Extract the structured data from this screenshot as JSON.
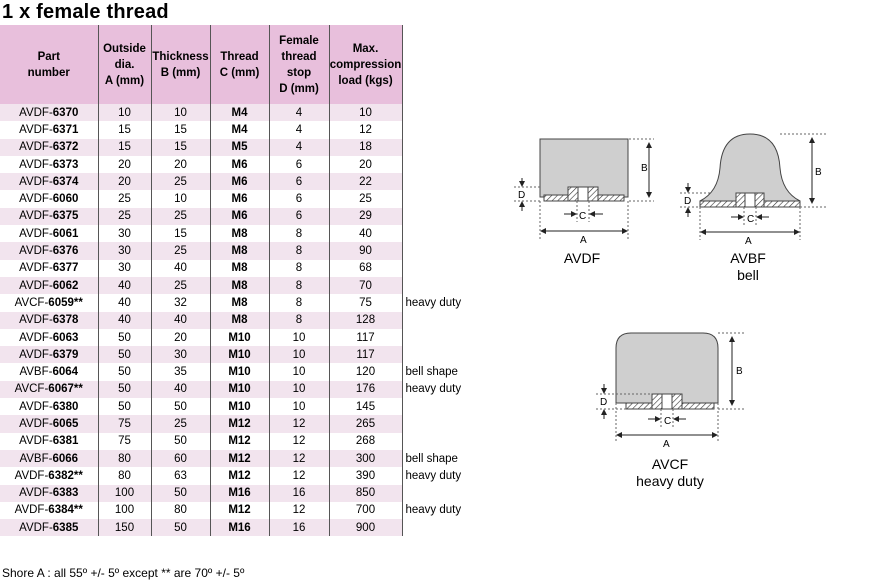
{
  "title": "1 x female thread",
  "headers": {
    "part": [
      "Part",
      "number"
    ],
    "outside": [
      "Outside",
      "dia.",
      "A (mm)"
    ],
    "thickness": [
      "Thickness",
      "B (mm)"
    ],
    "thread": [
      "Thread",
      "C (mm)"
    ],
    "stop": [
      "Female",
      "thread",
      "stop",
      "D (mm)"
    ],
    "load": [
      "Max.",
      "compression",
      "load (kgs)"
    ]
  },
  "rows": [
    {
      "prefix": "AVDF-",
      "code": "6370",
      "a": "10",
      "b": "10",
      "c": "M4",
      "d": "4",
      "load": "10",
      "note": ""
    },
    {
      "prefix": "AVDF-",
      "code": "6371",
      "a": "15",
      "b": "15",
      "c": "M4",
      "d": "4",
      "load": "12",
      "note": ""
    },
    {
      "prefix": "AVDF-",
      "code": "6372",
      "a": "15",
      "b": "15",
      "c": "M5",
      "d": "4",
      "load": "18",
      "note": ""
    },
    {
      "prefix": "AVDF-",
      "code": "6373",
      "a": "20",
      "b": "20",
      "c": "M6",
      "d": "6",
      "load": "20",
      "note": ""
    },
    {
      "prefix": "AVDF-",
      "code": "6374",
      "a": "20",
      "b": "25",
      "c": "M6",
      "d": "6",
      "load": "22",
      "note": ""
    },
    {
      "prefix": "AVDF-",
      "code": "6060",
      "a": "25",
      "b": "10",
      "c": "M6",
      "d": "6",
      "load": "25",
      "note": ""
    },
    {
      "prefix": "AVDF-",
      "code": "6375",
      "a": "25",
      "b": "25",
      "c": "M6",
      "d": "6",
      "load": "29",
      "note": ""
    },
    {
      "prefix": "AVDF-",
      "code": "6061",
      "a": "30",
      "b": "15",
      "c": "M8",
      "d": "8",
      "load": "40",
      "note": ""
    },
    {
      "prefix": "AVDF-",
      "code": "6376",
      "a": "30",
      "b": "25",
      "c": "M8",
      "d": "8",
      "load": "90",
      "note": ""
    },
    {
      "prefix": "AVDF-",
      "code": "6377",
      "a": "30",
      "b": "40",
      "c": "M8",
      "d": "8",
      "load": "68",
      "note": ""
    },
    {
      "prefix": "AVDF-",
      "code": "6062",
      "a": "40",
      "b": "25",
      "c": "M8",
      "d": "8",
      "load": "70",
      "note": ""
    },
    {
      "prefix": "AVCF-",
      "code": "6059**",
      "a": "40",
      "b": "32",
      "c": "M8",
      "d": "8",
      "load": "75",
      "note": "heavy duty"
    },
    {
      "prefix": "AVDF-",
      "code": "6378",
      "a": "40",
      "b": "40",
      "c": "M8",
      "d": "8",
      "load": "128",
      "note": ""
    },
    {
      "prefix": "AVDF-",
      "code": "6063",
      "a": "50",
      "b": "20",
      "c": "M10",
      "d": "10",
      "load": "117",
      "note": ""
    },
    {
      "prefix": "AVDF-",
      "code": "6379",
      "a": "50",
      "b": "30",
      "c": "M10",
      "d": "10",
      "load": "117",
      "note": ""
    },
    {
      "prefix": "AVBF-",
      "code": "6064",
      "a": "50",
      "b": "35",
      "c": "M10",
      "d": "10",
      "load": "120",
      "note": "bell shape"
    },
    {
      "prefix": "AVCF-",
      "code": "6067**",
      "a": "50",
      "b": "40",
      "c": "M10",
      "d": "10",
      "load": "176",
      "note": "heavy duty"
    },
    {
      "prefix": "AVDF-",
      "code": "6380",
      "a": "50",
      "b": "50",
      "c": "M10",
      "d": "10",
      "load": "145",
      "note": ""
    },
    {
      "prefix": "AVDF-",
      "code": "6065",
      "a": "75",
      "b": "25",
      "c": "M12",
      "d": "12",
      "load": "265",
      "note": ""
    },
    {
      "prefix": "AVDF-",
      "code": "6381",
      "a": "75",
      "b": "50",
      "c": "M12",
      "d": "12",
      "load": "268",
      "note": ""
    },
    {
      "prefix": "AVBF-",
      "code": "6066",
      "a": "80",
      "b": "60",
      "c": "M12",
      "d": "12",
      "load": "300",
      "note": "bell shape"
    },
    {
      "prefix": "AVDF-",
      "code": "6382**",
      "a": "80",
      "b": "63",
      "c": "M12",
      "d": "12",
      "load": "390",
      "note": "heavy duty"
    },
    {
      "prefix": "AVDF-",
      "code": "6383",
      "a": "100",
      "b": "50",
      "c": "M16",
      "d": "16",
      "load": "850",
      "note": ""
    },
    {
      "prefix": "AVDF-",
      "code": "6384**",
      "a": "100",
      "b": "80",
      "c": "M12",
      "d": "12",
      "load": "700",
      "note": "heavy duty"
    },
    {
      "prefix": "AVDF-",
      "code": "6385",
      "a": "150",
      "b": "50",
      "c": "M16",
      "d": "16",
      "load": "900",
      "note": ""
    }
  ],
  "footer": "Shore A : all 55º +/- 5º except ** are 70º +/- 5º",
  "diagrams": {
    "avdf": {
      "name": "AVDF",
      "sub": ""
    },
    "avbf": {
      "name": "AVBF",
      "sub": "bell"
    },
    "avcf": {
      "name": "AVCF",
      "sub": "heavy duty"
    },
    "dim_labels": {
      "a": "A",
      "b": "B",
      "c": "C",
      "d": "D"
    }
  },
  "colors": {
    "header_bg": "#e8bfdc",
    "row_shade": "#f2e4ee",
    "body_fill": "#cfcfcf"
  }
}
